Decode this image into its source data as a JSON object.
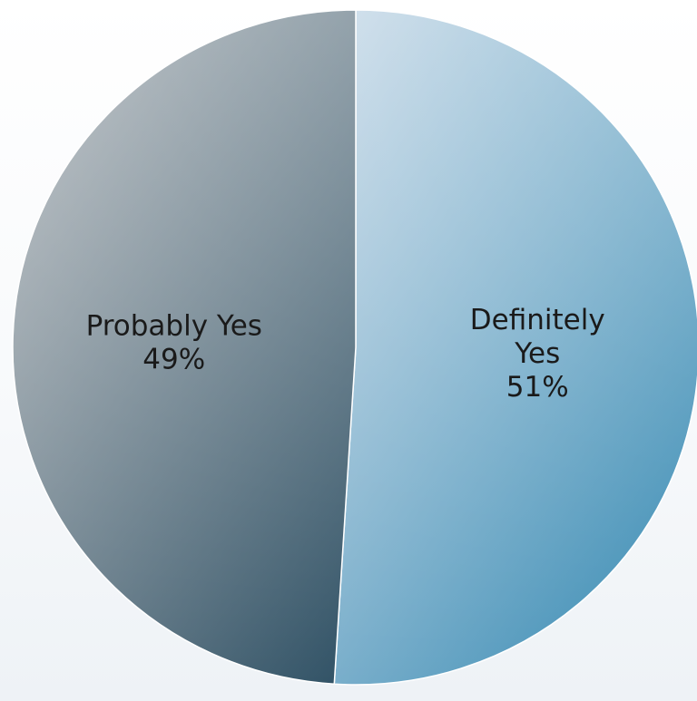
{
  "chart_data": {
    "type": "pie",
    "title": "",
    "slices": [
      {
        "label": "Definitely Yes",
        "label_lines": [
          "Definitely",
          "Yes"
        ],
        "value": 51,
        "display": "51%"
      },
      {
        "label": "Probably Yes",
        "label_lines": [
          "Probably Yes"
        ],
        "value": 49,
        "display": "49%"
      }
    ],
    "legend": "none",
    "colors": {
      "definitely_yes_light": "#c4d7e6",
      "definitely_yes_dark": "#2f86b0",
      "probably_yes_light": "#b3b8bc",
      "probably_yes_dark": "#2e5064"
    }
  }
}
